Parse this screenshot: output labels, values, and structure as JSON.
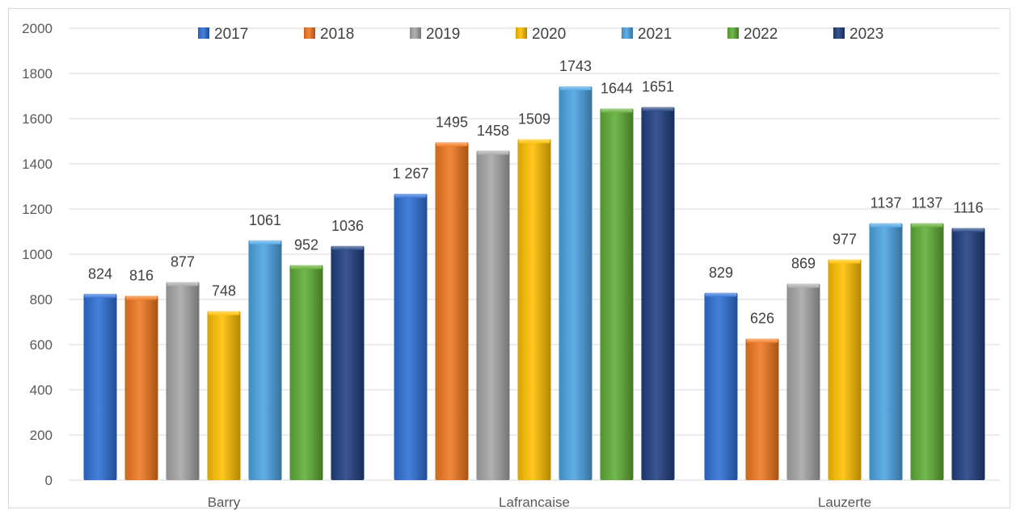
{
  "chart_data": {
    "type": "bar",
    "categories": [
      "Barry",
      "Lafrancaise",
      "Lauzerte"
    ],
    "series": [
      {
        "name": "2017",
        "color": "#2e6fd6",
        "values": [
          824,
          1267,
          829
        ],
        "labels": [
          "824",
          "1 267",
          "829"
        ]
      },
      {
        "name": "2018",
        "color": "#f07820",
        "values": [
          816,
          1495,
          626
        ],
        "labels": [
          "816",
          "1495",
          "626"
        ]
      },
      {
        "name": "2019",
        "color": "#a6a6a6",
        "values": [
          877,
          1458,
          869
        ],
        "labels": [
          "877",
          "1458",
          "869"
        ]
      },
      {
        "name": "2020",
        "color": "#ffc000",
        "values": [
          748,
          1509,
          977
        ],
        "labels": [
          "748",
          "1509",
          "977"
        ]
      },
      {
        "name": "2021",
        "color": "#4ba3e3",
        "values": [
          1061,
          1743,
          1137
        ],
        "labels": [
          "1061",
          "1743",
          "1137"
        ]
      },
      {
        "name": "2022",
        "color": "#5fad35",
        "values": [
          952,
          1644,
          1137
        ],
        "labels": [
          "952",
          "1644",
          "1137"
        ]
      },
      {
        "name": "2023",
        "color": "#1f3f80",
        "values": [
          1036,
          1651,
          1116
        ],
        "labels": [
          "1036",
          "1651",
          "1116"
        ]
      }
    ],
    "ylim": [
      0,
      2000
    ],
    "yticks": [
      "0",
      "200",
      "400",
      "600",
      "800",
      "1000",
      "1200",
      "1400",
      "1600",
      "1800",
      "2000"
    ],
    "grid": true,
    "legend_position": "top"
  }
}
